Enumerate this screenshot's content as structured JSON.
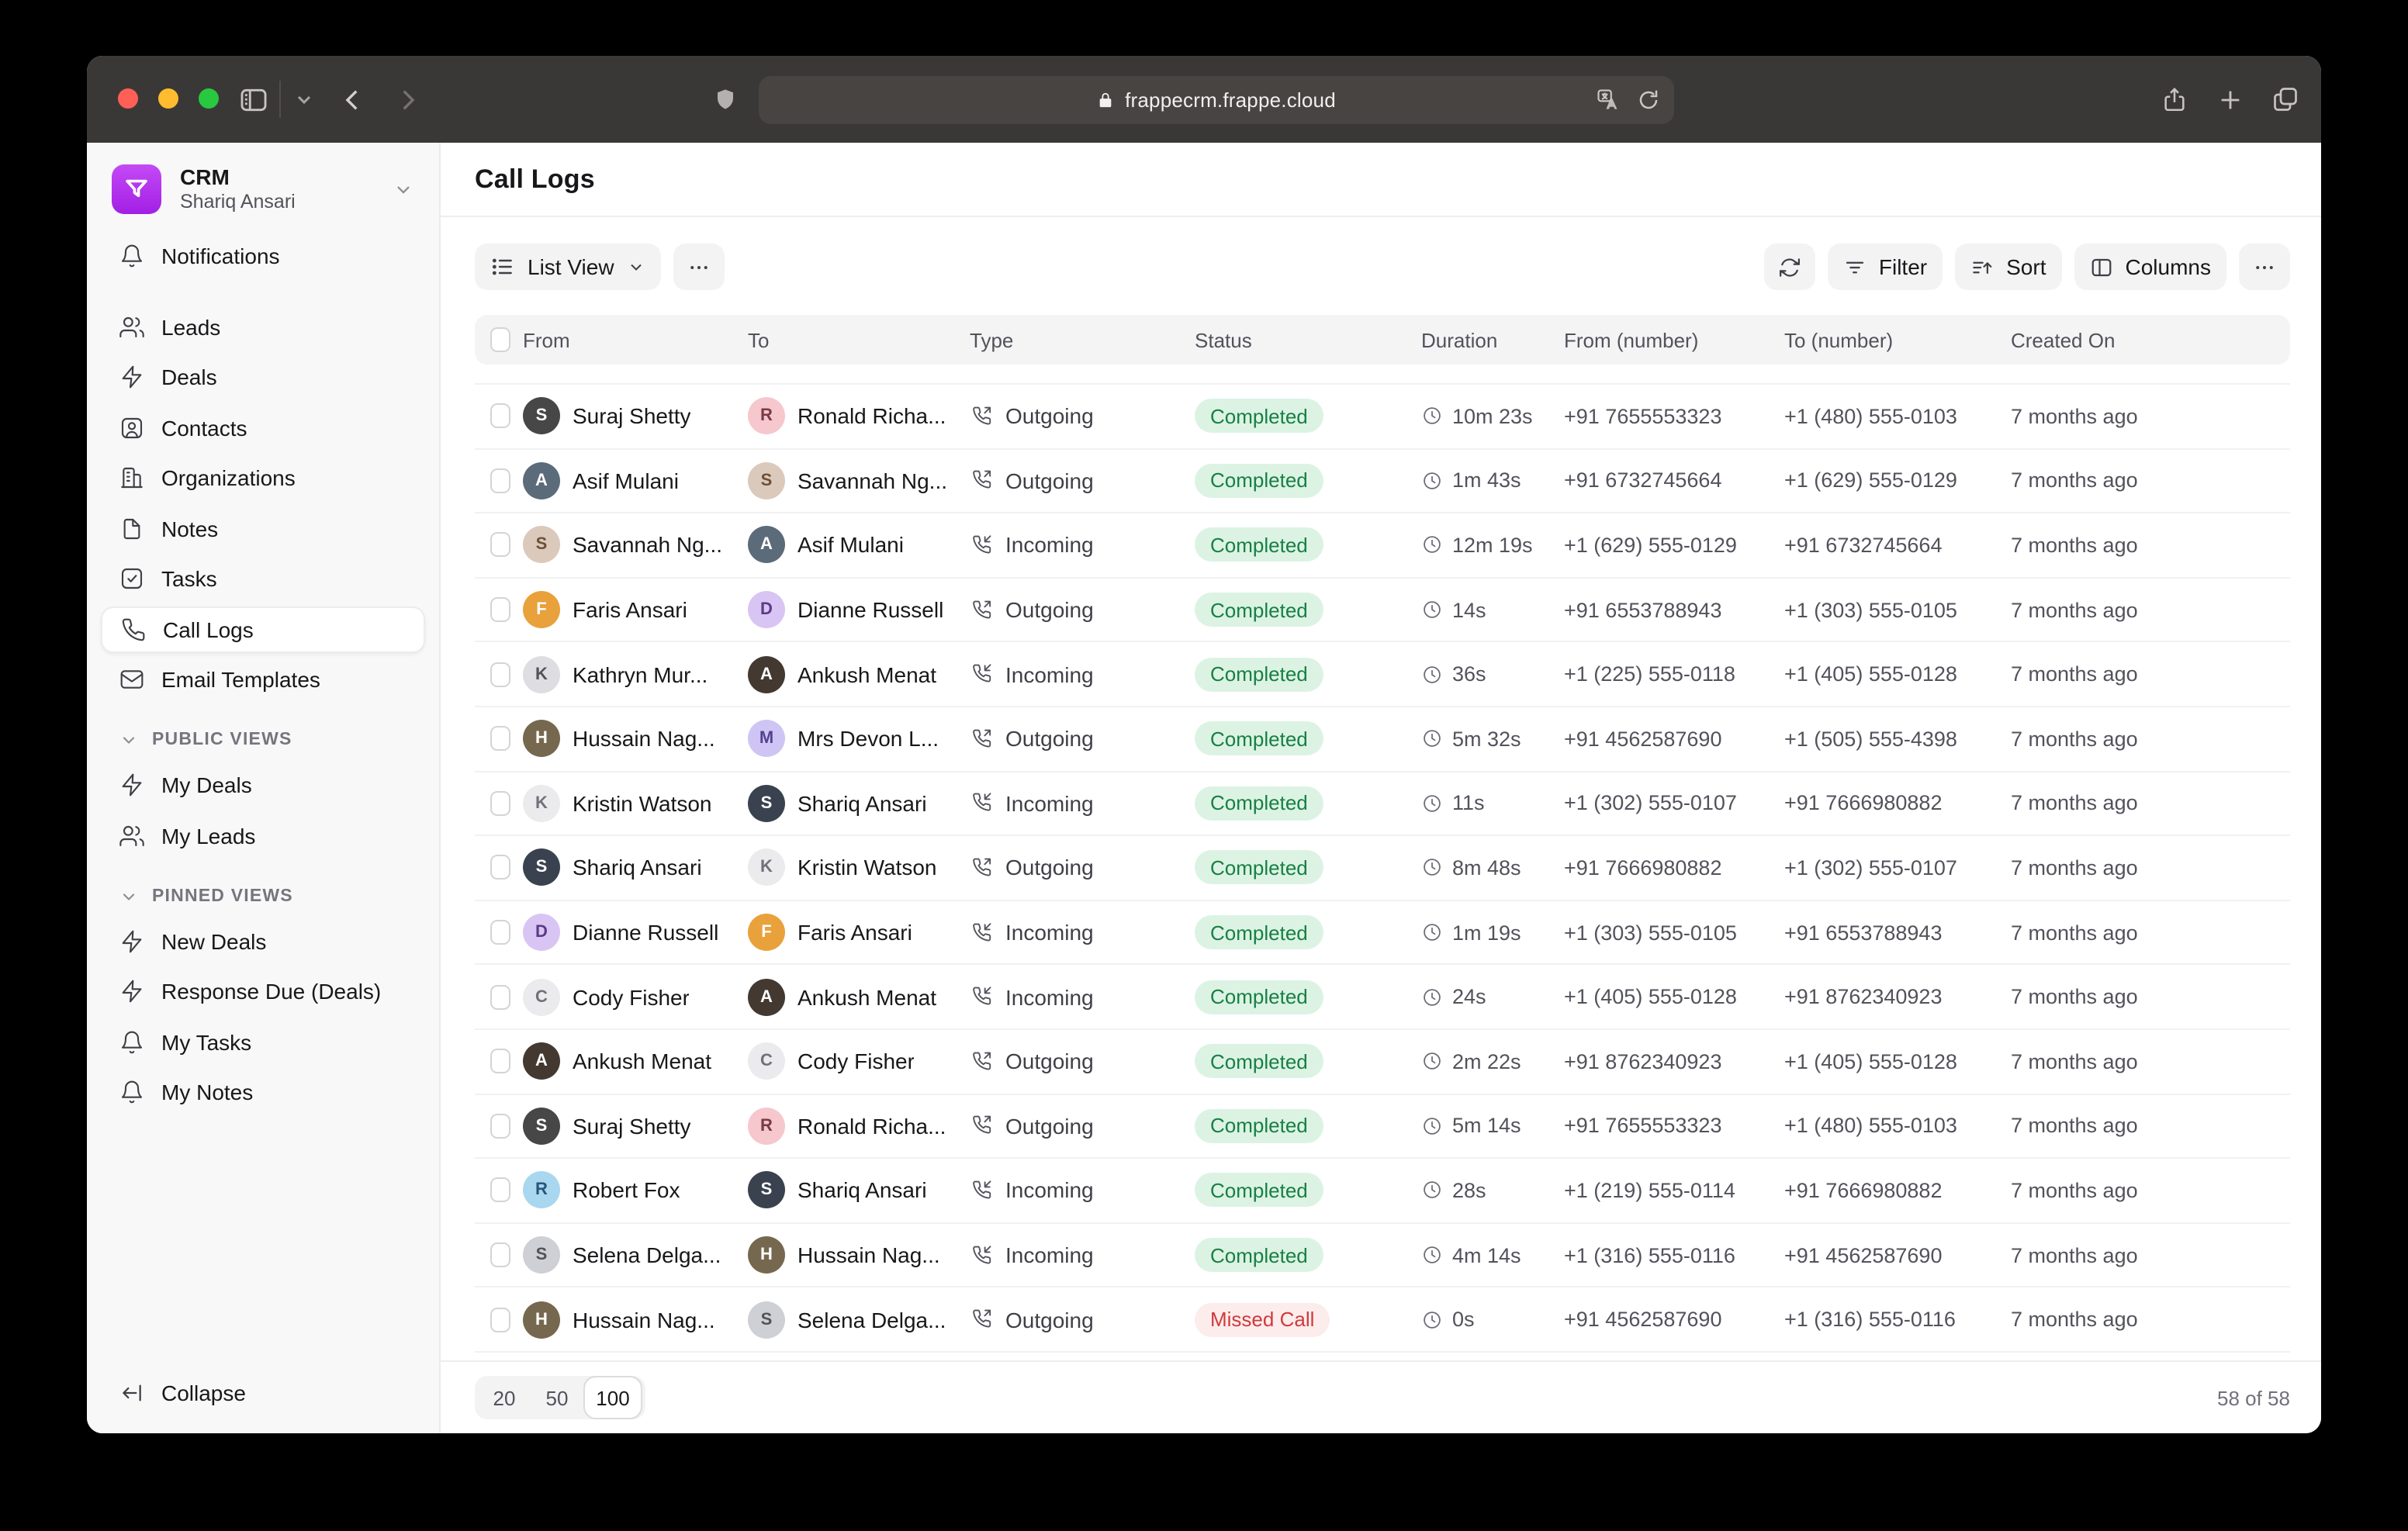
{
  "browser": {
    "url": "frappecrm.frappe.cloud",
    "icons": [
      "sidebar-toggle",
      "tab-group-chevron",
      "back",
      "forward",
      "shield",
      "lock",
      "translate",
      "reload",
      "share",
      "new-tab",
      "tab-overview"
    ]
  },
  "sidebar": {
    "app_name": "CRM",
    "user_name": "Shariq Ansari",
    "nav_top": [
      {
        "icon": "bell",
        "label": "Notifications",
        "active": false
      }
    ],
    "nav_main": [
      {
        "icon": "users",
        "label": "Leads",
        "active": false
      },
      {
        "icon": "zap",
        "label": "Deals",
        "active": false
      },
      {
        "icon": "contact",
        "label": "Contacts",
        "active": false
      },
      {
        "icon": "building",
        "label": "Organizations",
        "active": false
      },
      {
        "icon": "file",
        "label": "Notes",
        "active": false
      },
      {
        "icon": "check-square",
        "label": "Tasks",
        "active": false
      },
      {
        "icon": "phone",
        "label": "Call Logs",
        "active": true
      },
      {
        "icon": "mail",
        "label": "Email Templates",
        "active": false
      }
    ],
    "sections": [
      {
        "title": "PUBLIC VIEWS",
        "items": [
          {
            "icon": "zap",
            "label": "My Deals"
          },
          {
            "icon": "users",
            "label": "My Leads"
          }
        ]
      },
      {
        "title": "PINNED VIEWS",
        "items": [
          {
            "icon": "zap",
            "label": "New Deals"
          },
          {
            "icon": "zap",
            "label": "Response Due (Deals)"
          },
          {
            "icon": "bell",
            "label": "My Tasks"
          },
          {
            "icon": "bell",
            "label": "My Notes"
          }
        ]
      }
    ],
    "collapse_label": "Collapse"
  },
  "main": {
    "title": "Call Logs",
    "toolbar": {
      "view_label": "List View",
      "filter_label": "Filter",
      "sort_label": "Sort",
      "columns_label": "Columns",
      "more_label": "..."
    },
    "table": {
      "headers": [
        "From",
        "To",
        "Type",
        "Status",
        "Duration",
        "From (number)",
        "To (number)",
        "Created On"
      ],
      "people": {
        "suraj": {
          "initial": "S",
          "bg": "#474747",
          "fg": "#ffffff"
        },
        "ronald": {
          "initial": "R",
          "bg": "#f6c7cd",
          "fg": "#7a3b44"
        },
        "asif": {
          "initial": "A",
          "bg": "#5c6b7a",
          "fg": "#ffffff"
        },
        "savannah": {
          "initial": "S",
          "bg": "#dbc9bc",
          "fg": "#6b5138"
        },
        "faris": {
          "initial": "F",
          "bg": "#e9a13c",
          "fg": "#ffffff"
        },
        "dianne": {
          "initial": "D",
          "bg": "#d9c5f3",
          "fg": "#5b3a85"
        },
        "kathryn": {
          "initial": "K",
          "bg": "#dddde2",
          "fg": "#52525b"
        },
        "ankush": {
          "initial": "A",
          "bg": "#433931",
          "fg": "#ffffff"
        },
        "hussain": {
          "initial": "H",
          "bg": "#76684f",
          "fg": "#ffffff"
        },
        "devon": {
          "initial": "M",
          "bg": "#cfc5f4",
          "fg": "#54418f"
        },
        "kristin": {
          "initial": "K",
          "bg": "#ebebee",
          "fg": "#71717a"
        },
        "shariq": {
          "initial": "S",
          "bg": "#3a4250",
          "fg": "#ffffff"
        },
        "cody": {
          "initial": "C",
          "bg": "#ebebee",
          "fg": "#71717a"
        },
        "robert": {
          "initial": "R",
          "bg": "#a9d7f0",
          "fg": "#27567a"
        },
        "selena": {
          "initial": "S",
          "bg": "#cfcfd6",
          "fg": "#52525b"
        }
      },
      "rows": [
        {
          "from": "suraj",
          "from_name": "Suraj Shetty",
          "to": "ronald",
          "to_name": "Ronald Richa...",
          "type": "Outgoing",
          "status": "Completed",
          "duration": "10m 23s",
          "from_number": "+91 7655553323",
          "to_number": "+1 (480) 555-0103",
          "created": "7 months ago"
        },
        {
          "from": "asif",
          "from_name": "Asif Mulani",
          "to": "savannah",
          "to_name": "Savannah Ng...",
          "type": "Outgoing",
          "status": "Completed",
          "duration": "1m 43s",
          "from_number": "+91 6732745664",
          "to_number": "+1 (629) 555-0129",
          "created": "7 months ago"
        },
        {
          "from": "savannah",
          "from_name": "Savannah Ng...",
          "to": "asif",
          "to_name": "Asif Mulani",
          "type": "Incoming",
          "status": "Completed",
          "duration": "12m 19s",
          "from_number": "+1 (629) 555-0129",
          "to_number": "+91 6732745664",
          "created": "7 months ago"
        },
        {
          "from": "faris",
          "from_name": "Faris Ansari",
          "to": "dianne",
          "to_name": "Dianne Russell",
          "type": "Outgoing",
          "status": "Completed",
          "duration": "14s",
          "from_number": "+91 6553788943",
          "to_number": "+1 (303) 555-0105",
          "created": "7 months ago"
        },
        {
          "from": "kathryn",
          "from_name": "Kathryn Mur...",
          "to": "ankush",
          "to_name": "Ankush Menat",
          "type": "Incoming",
          "status": "Completed",
          "duration": "36s",
          "from_number": "+1 (225) 555-0118",
          "to_number": "+1 (405) 555-0128",
          "created": "7 months ago"
        },
        {
          "from": "hussain",
          "from_name": "Hussain Nag...",
          "to": "devon",
          "to_name": "Mrs Devon L...",
          "type": "Outgoing",
          "status": "Completed",
          "duration": "5m 32s",
          "from_number": "+91 4562587690",
          "to_number": "+1 (505) 555-4398",
          "created": "7 months ago"
        },
        {
          "from": "kristin",
          "from_name": "Kristin Watson",
          "to": "shariq",
          "to_name": "Shariq Ansari",
          "type": "Incoming",
          "status": "Completed",
          "duration": "11s",
          "from_number": "+1 (302) 555-0107",
          "to_number": "+91 7666980882",
          "created": "7 months ago"
        },
        {
          "from": "shariq",
          "from_name": "Shariq Ansari",
          "to": "kristin",
          "to_name": "Kristin Watson",
          "type": "Outgoing",
          "status": "Completed",
          "duration": "8m 48s",
          "from_number": "+91 7666980882",
          "to_number": "+1 (302) 555-0107",
          "created": "7 months ago"
        },
        {
          "from": "dianne",
          "from_name": "Dianne Russell",
          "to": "faris",
          "to_name": "Faris Ansari",
          "type": "Incoming",
          "status": "Completed",
          "duration": "1m 19s",
          "from_number": "+1 (303) 555-0105",
          "to_number": "+91 6553788943",
          "created": "7 months ago"
        },
        {
          "from": "cody",
          "from_name": "Cody Fisher",
          "to": "ankush",
          "to_name": "Ankush Menat",
          "type": "Incoming",
          "status": "Completed",
          "duration": "24s",
          "from_number": "+1 (405) 555-0128",
          "to_number": "+91 8762340923",
          "created": "7 months ago"
        },
        {
          "from": "ankush",
          "from_name": "Ankush Menat",
          "to": "cody",
          "to_name": "Cody Fisher",
          "type": "Outgoing",
          "status": "Completed",
          "duration": "2m 22s",
          "from_number": "+91 8762340923",
          "to_number": "+1 (405) 555-0128",
          "created": "7 months ago"
        },
        {
          "from": "suraj",
          "from_name": "Suraj Shetty",
          "to": "ronald",
          "to_name": "Ronald Richa...",
          "type": "Outgoing",
          "status": "Completed",
          "duration": "5m 14s",
          "from_number": "+91 7655553323",
          "to_number": "+1 (480) 555-0103",
          "created": "7 months ago"
        },
        {
          "from": "robert",
          "from_name": "Robert Fox",
          "to": "shariq",
          "to_name": "Shariq Ansari",
          "type": "Incoming",
          "status": "Completed",
          "duration": "28s",
          "from_number": "+1 (219) 555-0114",
          "to_number": "+91 7666980882",
          "created": "7 months ago"
        },
        {
          "from": "selena",
          "from_name": "Selena Delga...",
          "to": "hussain",
          "to_name": "Hussain Nag...",
          "type": "Incoming",
          "status": "Completed",
          "duration": "4m 14s",
          "from_number": "+1 (316) 555-0116",
          "to_number": "+91 4562587690",
          "created": "7 months ago"
        },
        {
          "from": "hussain",
          "from_name": "Hussain Nag...",
          "to": "selena",
          "to_name": "Selena Delga...",
          "type": "Outgoing",
          "status": "Missed Call",
          "duration": "0s",
          "from_number": "+91 4562587690",
          "to_number": "+1 (316) 555-0116",
          "created": "7 months ago"
        }
      ]
    },
    "footer": {
      "page_sizes": [
        "20",
        "50",
        "100"
      ],
      "selected_page_size": "100",
      "count": "58 of 58"
    }
  },
  "colors": {
    "chrome_bg": "#3a3836",
    "sidebar_bg": "#f8f8f8",
    "accent_purple": "#b83df2",
    "status_success_bg": "#dcf3e4",
    "status_success_fg": "#178043",
    "status_danger_bg": "#fdecec",
    "status_danger_fg": "#ce3b3b"
  }
}
